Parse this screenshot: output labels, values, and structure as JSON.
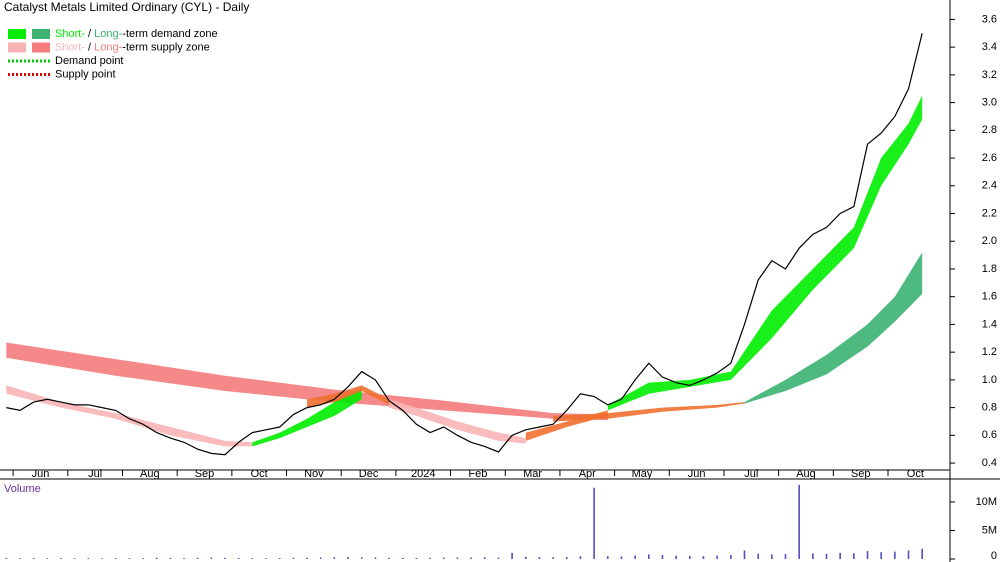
{
  "chart_data": {
    "type": "line",
    "title": "Catalyst Metals Limited Ordinary (CYL) - Daily",
    "categories": [
      null,
      "Jun",
      null,
      null,
      null,
      "Jul",
      null,
      null,
      null,
      "Aug",
      null,
      null,
      null,
      "Sep",
      null,
      null,
      null,
      "Oct",
      null,
      null,
      null,
      "Nov",
      null,
      null,
      null,
      "Dec",
      null,
      null,
      null,
      "2024",
      null,
      null,
      null,
      "Feb",
      null,
      null,
      null,
      "Mar",
      null,
      null,
      null,
      "Apr",
      null,
      null,
      null,
      "May",
      null,
      null,
      null,
      "Jun",
      null,
      null,
      null,
      "Jul",
      null,
      null,
      null,
      "Aug",
      null,
      null,
      null,
      "Sep",
      null,
      null,
      null,
      "Oct",
      null,
      null
    ],
    "values": [
      0.8,
      0.78,
      0.84,
      0.86,
      0.84,
      0.82,
      0.82,
      0.8,
      0.78,
      0.72,
      0.68,
      0.62,
      0.58,
      0.55,
      0.5,
      0.47,
      0.46,
      0.55,
      0.62,
      0.64,
      0.66,
      0.75,
      0.8,
      0.82,
      0.86,
      0.95,
      1.06,
      1.0,
      0.85,
      0.78,
      0.68,
      0.62,
      0.66,
      0.6,
      0.55,
      0.52,
      0.48,
      0.6,
      0.64,
      0.66,
      0.68,
      0.78,
      0.9,
      0.88,
      0.82,
      0.86,
      1.0,
      1.12,
      1.02,
      0.98,
      0.96,
      1.0,
      1.05,
      1.12,
      1.4,
      1.72,
      1.86,
      1.8,
      1.95,
      2.05,
      2.1,
      2.2,
      2.25,
      2.7,
      2.78,
      2.9,
      3.1,
      3.5
    ],
    "color": "#000000",
    "ylim": [
      0.35,
      3.74
    ],
    "yticks": [
      0.4,
      0.6,
      0.8,
      {
        "value": 1,
        "label": "1.0"
      },
      1.2,
      1.4,
      1.6,
      1.8,
      {
        "value": 2,
        "label": "2.0"
      },
      2.2,
      2.4,
      2.6,
      2.8,
      {
        "value": 3,
        "label": "3.0"
      },
      3.2,
      3.4,
      3.6
    ],
    "zones": [
      {
        "color": "#f47c7c",
        "x": [
          0,
          8,
          16,
          24,
          32,
          40,
          44
        ],
        "upper": [
          1.27,
          1.15,
          1.03,
          0.93,
          0.85,
          0.76,
          0.75
        ],
        "lower": [
          1.16,
          1.03,
          0.92,
          0.84,
          0.78,
          0.72,
          0.71
        ]
      },
      {
        "color": "#f07030",
        "x": [
          40,
          44,
          48,
          52,
          54
        ],
        "upper": [
          0.74,
          0.76,
          0.8,
          0.82,
          0.84
        ],
        "lower": [
          0.7,
          0.72,
          0.77,
          0.8,
          0.83
        ]
      },
      {
        "color": "#3cb371",
        "x": [
          54,
          57,
          60,
          63,
          65,
          67
        ],
        "upper": [
          0.84,
          1.0,
          1.18,
          1.4,
          1.6,
          1.92
        ],
        "lower": [
          0.83,
          0.92,
          1.04,
          1.24,
          1.42,
          1.62
        ]
      },
      {
        "color": "#f8b4b4",
        "x": [
          0,
          4,
          8,
          12,
          16,
          18
        ],
        "upper": [
          0.96,
          0.84,
          0.76,
          0.66,
          0.56,
          0.55
        ],
        "lower": [
          0.9,
          0.8,
          0.72,
          0.6,
          0.52,
          0.52
        ]
      },
      {
        "color": "#00ee00",
        "x": [
          18,
          20,
          22,
          24,
          26
        ],
        "upper": [
          0.55,
          0.62,
          0.72,
          0.84,
          0.94
        ],
        "lower": [
          0.52,
          0.58,
          0.66,
          0.74,
          0.86
        ]
      },
      {
        "color": "#f07030",
        "x": [
          22,
          24,
          26,
          28
        ],
        "upper": [
          0.86,
          0.9,
          0.96,
          0.86
        ],
        "lower": [
          0.8,
          0.84,
          0.92,
          0.82
        ]
      },
      {
        "color": "#f8b4b4",
        "x": [
          28,
          30,
          33,
          36,
          38
        ],
        "upper": [
          0.86,
          0.8,
          0.7,
          0.62,
          0.58
        ],
        "lower": [
          0.8,
          0.74,
          0.64,
          0.56,
          0.54
        ]
      },
      {
        "color": "#f07030",
        "x": [
          38,
          41,
          44
        ],
        "upper": [
          0.62,
          0.7,
          0.78
        ],
        "lower": [
          0.56,
          0.66,
          0.74
        ]
      },
      {
        "color": "#00ee00",
        "x": [
          44,
          47,
          50,
          53,
          56,
          59,
          62,
          64,
          66,
          67
        ],
        "upper": [
          0.82,
          0.98,
          1.0,
          1.06,
          1.5,
          1.8,
          2.1,
          2.6,
          2.85,
          3.05
        ],
        "lower": [
          0.78,
          0.9,
          0.95,
          1.0,
          1.3,
          1.65,
          1.95,
          2.4,
          2.7,
          2.88
        ]
      }
    ],
    "legend": [
      {
        "parts": [
          "Short-",
          " / ",
          "Long-",
          "-term demand zone"
        ],
        "colors": [
          "#00ee00",
          "#3cb371"
        ]
      },
      {
        "parts": [
          "Short-",
          " / ",
          "Long-",
          "-term supply zone"
        ],
        "colors": [
          "#f8b4b4",
          "#f47c7c"
        ]
      },
      {
        "parts": [
          "Demand point"
        ],
        "colors": [
          "#00cc00"
        ]
      },
      {
        "parts": [
          "Supply point"
        ],
        "colors": [
          "#dd0000"
        ]
      }
    ],
    "volume": {
      "label": "Volume",
      "color": "#5050c0",
      "values": [
        200000,
        150000,
        180000,
        120000,
        150000,
        130000,
        140000,
        120000,
        150000,
        160000,
        140000,
        200000,
        180000,
        150000,
        220000,
        250000,
        200000,
        180000,
        150000,
        160000,
        170000,
        200000,
        220000,
        250000,
        300000,
        350000,
        280000,
        250000,
        200000,
        180000,
        200000,
        220000,
        250000,
        260000,
        280000,
        300000,
        250000,
        1100000,
        400000,
        350000,
        300000,
        350000,
        500000,
        12500000,
        500000,
        450000,
        600000,
        800000,
        700000,
        600000,
        550000,
        500000,
        600000,
        700000,
        1500000,
        900000,
        800000,
        900000,
        13000000,
        1000000,
        900000,
        1100000,
        1000000,
        1400000,
        1200000,
        1300000,
        1500000,
        1800000
      ],
      "ylim": [
        0,
        13500000
      ],
      "yticks": [
        {
          "value": 0,
          "label": "0"
        },
        {
          "value": 5000000,
          "label": "5M"
        },
        {
          "value": 10000000,
          "label": "10M"
        }
      ]
    }
  }
}
